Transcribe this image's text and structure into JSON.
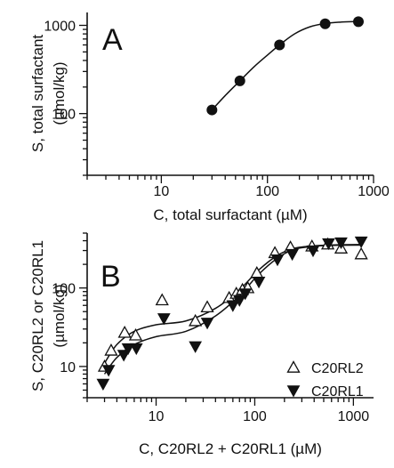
{
  "chart_data": [
    {
      "type": "scatter",
      "panel": "A",
      "xlabel": "C, total surfactant (µM)",
      "ylabel_line1": "S, total surfactant",
      "ylabel_line2": "(µmol/kg)",
      "x_scale": "log",
      "y_scale": "log",
      "xlim": [
        2,
        1000
      ],
      "ylim": [
        20,
        1400
      ],
      "xticks": [
        10,
        100,
        1000
      ],
      "xtick_labels": [
        "10",
        "100",
        "1000"
      ],
      "yticks": [
        100,
        1000
      ],
      "ytick_labels": [
        "100",
        "1000"
      ],
      "series": [
        {
          "marker": "filled-circle",
          "x": [
            30,
            55,
            130,
            350,
            720
          ],
          "y": [
            110,
            235,
            600,
            1040,
            1100
          ]
        }
      ],
      "fit_curve": {
        "x": [
          30,
          40,
          55,
          75,
          100,
          130,
          180,
          250,
          350,
          500,
          720
        ],
        "y": [
          110,
          160,
          235,
          340,
          460,
          600,
          800,
          960,
          1050,
          1090,
          1105
        ]
      },
      "grid": false
    },
    {
      "type": "scatter",
      "panel": "B",
      "xlabel": "C, C20RL2 + C20RL1 (µM)",
      "ylabel_line1": "S, C20RL2 or C20RL1",
      "ylabel_line2": "(µmol/kg)",
      "x_scale": "log",
      "y_scale": "log",
      "xlim": [
        2,
        1600
      ],
      "ylim": [
        4,
        500
      ],
      "xticks": [
        10,
        100,
        1000
      ],
      "xtick_labels": [
        "10",
        "100",
        "1000"
      ],
      "yticks": [
        10,
        100
      ],
      "ytick_labels": [
        "10",
        "100"
      ],
      "legend_position": "bottom-right",
      "series": [
        {
          "name": "C20RL2",
          "marker": "open-triangle-up",
          "x": [
            3.0,
            3.5,
            4.8,
            6.2,
            11.5,
            25,
            33,
            55,
            65,
            75,
            85,
            105,
            160,
            230,
            380,
            550,
            750,
            1200
          ],
          "y": [
            10,
            16,
            27,
            25,
            70,
            38,
            57,
            75,
            85,
            95,
            100,
            155,
            280,
            330,
            340,
            360,
            320,
            270
          ]
        },
        {
          "name": "C20RL1",
          "marker": "filled-triangle-down",
          "x": [
            2.9,
            3.3,
            4.7,
            5.2,
            6.3,
            12,
            25,
            33,
            60,
            70,
            80,
            110,
            170,
            240,
            390,
            560,
            750,
            1200
          ],
          "y": [
            6,
            9,
            14,
            17,
            17,
            41,
            18,
            36,
            60,
            70,
            85,
            120,
            230,
            270,
            300,
            370,
            380,
            390
          ]
        }
      ],
      "fit_curves": [
        {
          "x": [
            3,
            4,
            6,
            10,
            20,
            40,
            70,
            110,
            170,
            250,
            400,
            700,
            1200
          ],
          "y": [
            11,
            19,
            28,
            34,
            38,
            55,
            95,
            170,
            260,
            320,
            345,
            355,
            358
          ]
        },
        {
          "x": [
            3,
            4,
            6,
            10,
            20,
            40,
            70,
            110,
            170,
            250,
            400,
            700,
            1200
          ],
          "y": [
            8,
            13,
            19,
            24,
            28,
            44,
            80,
            150,
            240,
            310,
            340,
            350,
            352
          ]
        }
      ],
      "grid": false
    }
  ]
}
